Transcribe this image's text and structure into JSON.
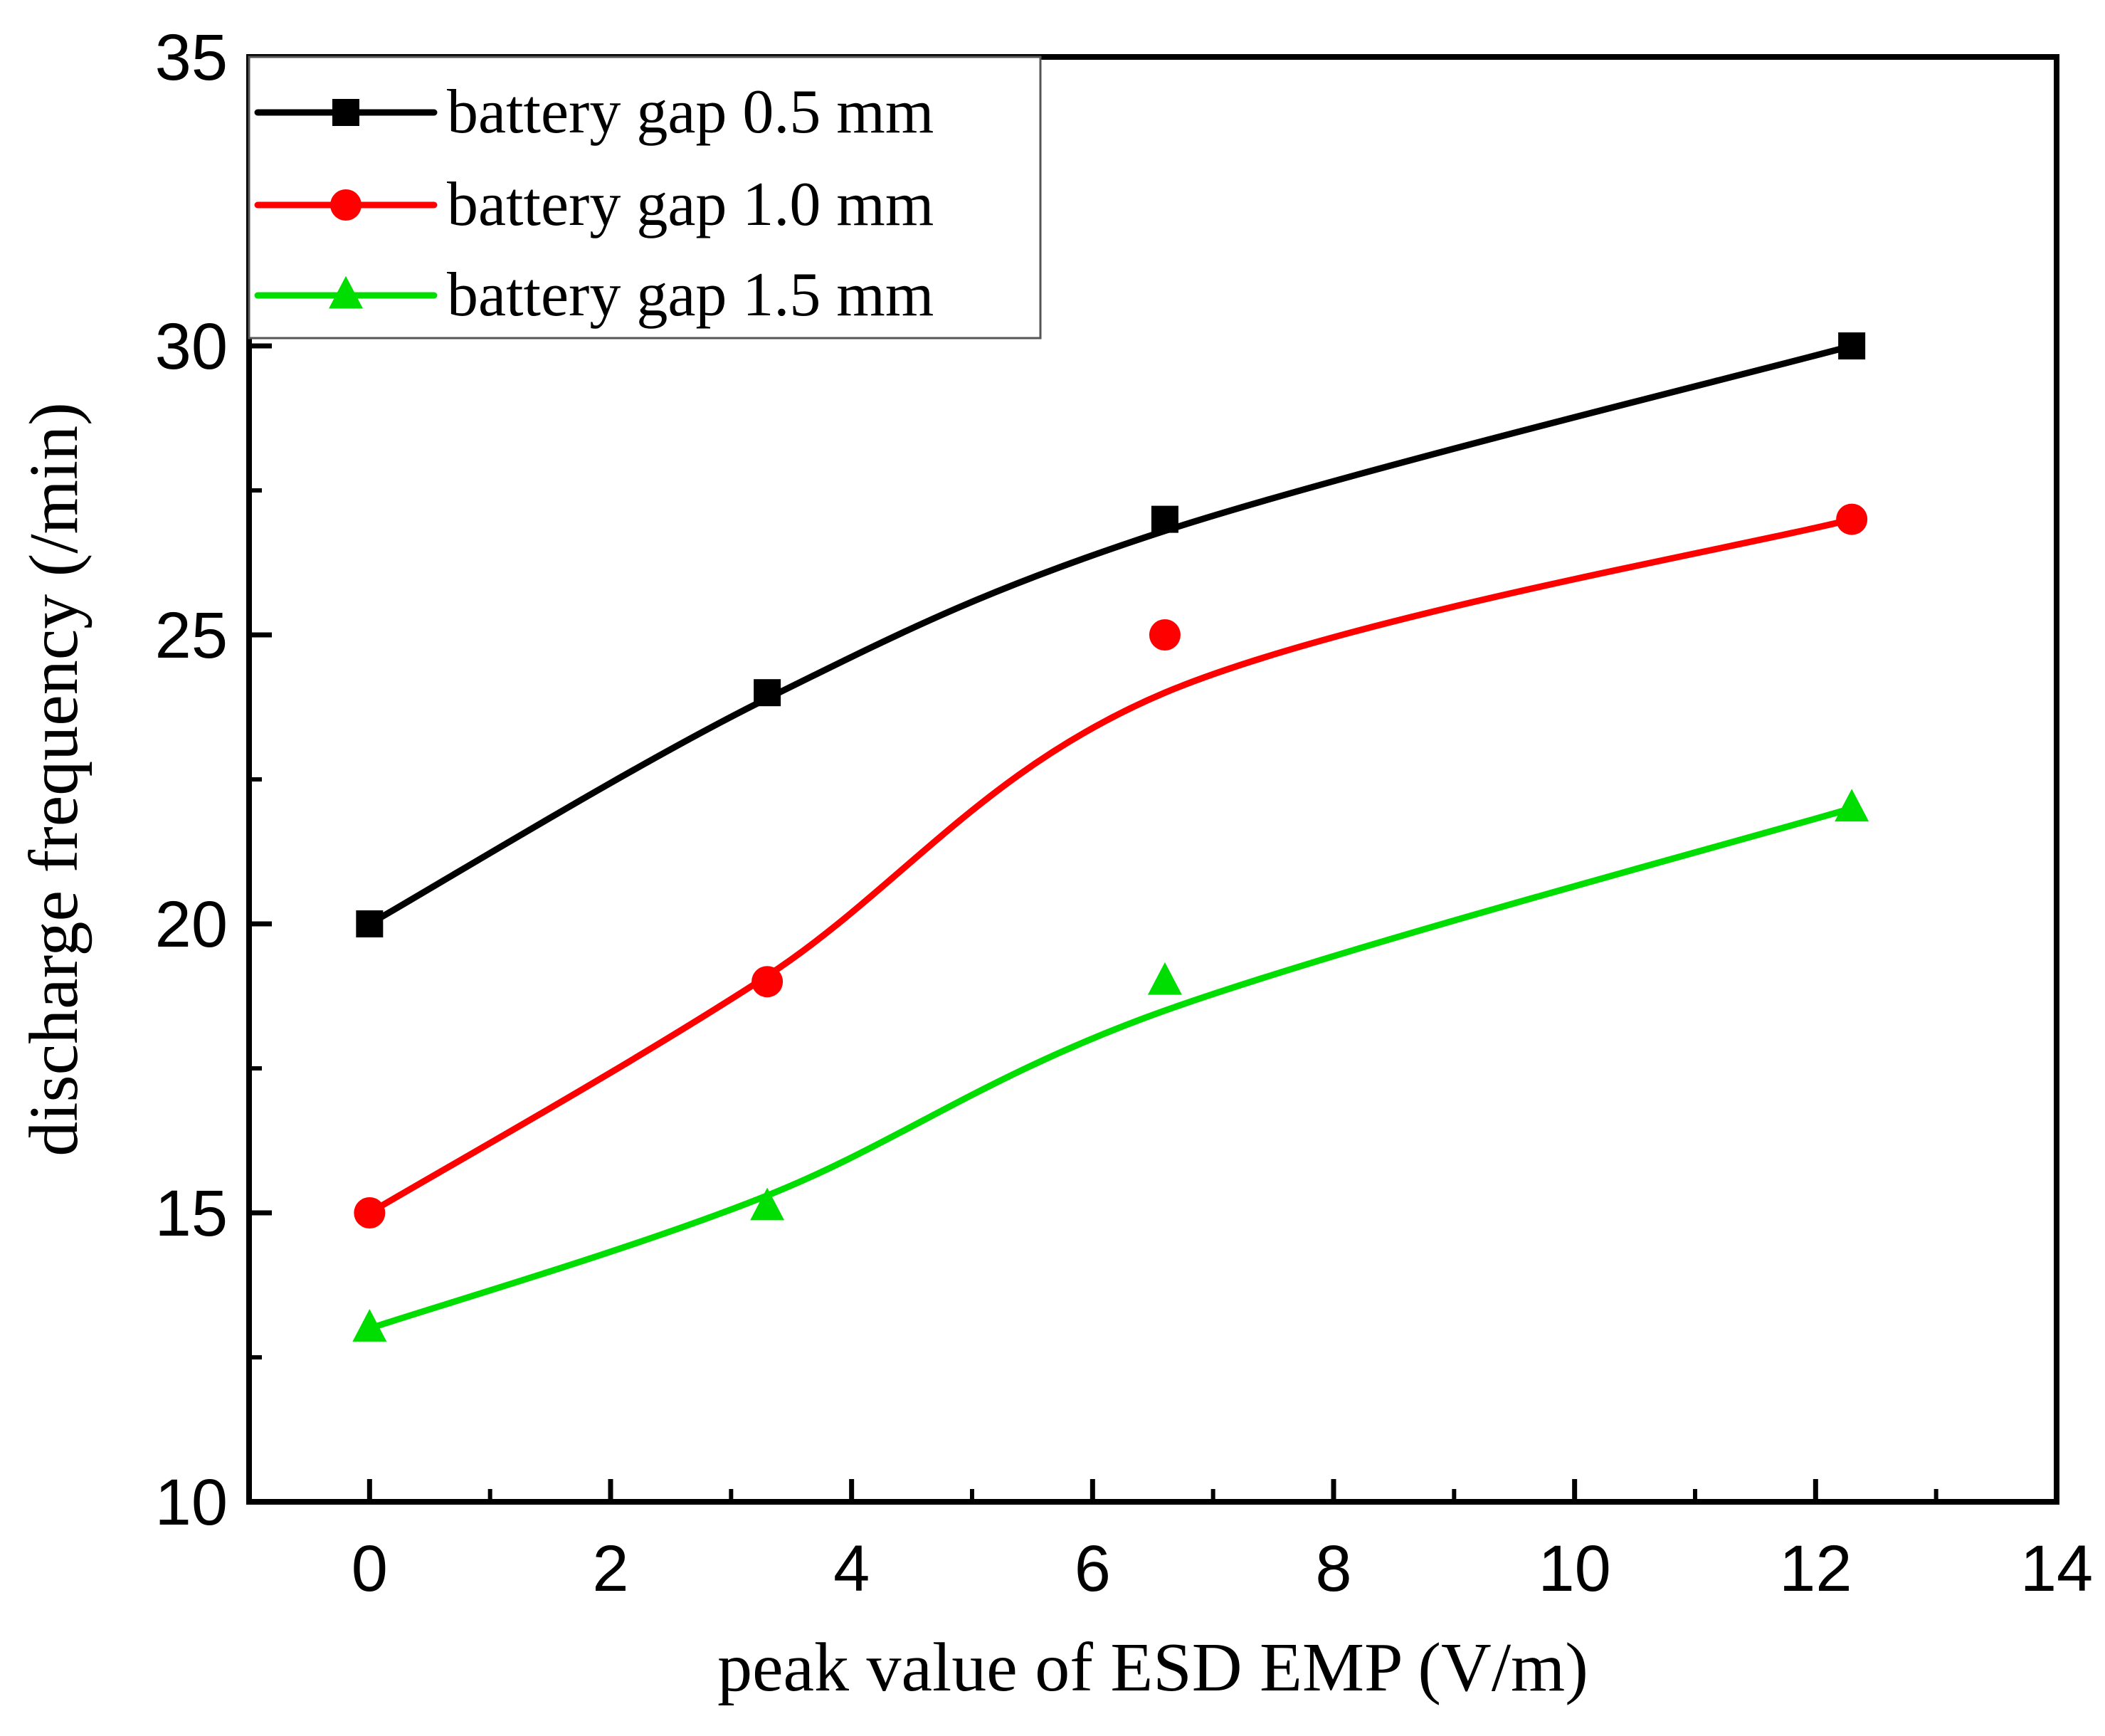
{
  "chart_data": {
    "type": "line",
    "title": "",
    "xlabel": "peak value of ESD EMP (V/m)",
    "ylabel": "discharge frequency (/min)",
    "xlim": [
      -1,
      14
    ],
    "ylim": [
      10,
      35
    ],
    "xticks": [
      0,
      2,
      4,
      6,
      8,
      10,
      12,
      14
    ],
    "xtick_labels": [
      "0",
      "2",
      "4",
      "6",
      "8",
      "10",
      "12",
      "14"
    ],
    "yticks": [
      10,
      15,
      20,
      25,
      30,
      35
    ],
    "ytick_labels": [
      "10",
      "15",
      "20",
      "25",
      "30",
      "35"
    ],
    "grid": false,
    "legend_position": "top-left",
    "x": [
      0,
      3.3,
      6.6,
      12.3
    ],
    "series": [
      {
        "name": "battery gap 0.5 mm",
        "color": "#000000",
        "marker": "square",
        "values": [
          20,
          24,
          27,
          30
        ],
        "fit_values": [
          20,
          23.9,
          26.8,
          30
        ]
      },
      {
        "name": "battery gap 1.0 mm",
        "color": "#ff0000",
        "marker": "circle",
        "values": [
          15,
          19,
          25,
          27
        ],
        "fit_values": [
          15,
          19.1,
          24,
          27
        ]
      },
      {
        "name": "battery gap 1.5 mm",
        "color": "#00dd00",
        "marker": "triangle",
        "values": [
          13,
          15.1,
          19,
          22
        ],
        "fit_values": [
          13,
          15.3,
          18.5,
          22
        ]
      }
    ]
  }
}
